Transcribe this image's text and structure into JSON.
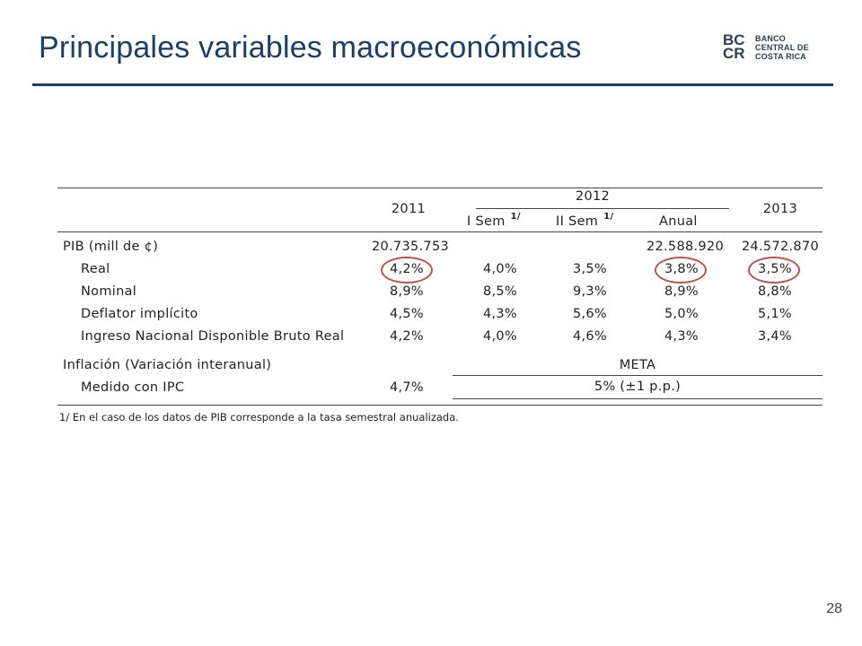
{
  "slide": {
    "title": "Principales variables macroeconómicas",
    "page_number": "28",
    "logo": {
      "line1": "BANCO",
      "line2": "CENTRAL DE",
      "line3": "COSTA RICA",
      "mark_top": "BC",
      "mark_bottom": "CR"
    },
    "accent_color": "#1b3f66",
    "highlight_color": "#c0504d"
  },
  "table": {
    "headers": {
      "y2011": "2011",
      "y2012": "2012",
      "y2013": "2013",
      "sem1": "I Sem",
      "sem2": "II Sem",
      "sem_note": "1/",
      "anual": "Anual",
      "meta": "META"
    },
    "rows": [
      {
        "label": "PIB (mill de ¢)",
        "c2011": "20.735.753",
        "s1": "",
        "s2": "",
        "anual": "22.588.920",
        "c2013": "24.572.870"
      },
      {
        "label": "Real",
        "c2011": "4,2%",
        "s1": "4,0%",
        "s2": "3,5%",
        "anual": "3,8%",
        "c2013": "3,5%"
      },
      {
        "label": "Nominal",
        "c2011": "8,9%",
        "s1": "8,5%",
        "s2": "9,3%",
        "anual": "8,9%",
        "c2013": "8,8%"
      },
      {
        "label": "Deflator implícito",
        "c2011": "4,5%",
        "s1": "4,3%",
        "s2": "5,6%",
        "anual": "5,0%",
        "c2013": "5,1%"
      },
      {
        "label": "Ingreso Nacional Disponible Bruto Real",
        "c2011": "4,2%",
        "s1": "4,0%",
        "s2": "4,6%",
        "anual": "4,3%",
        "c2013": "3,4%"
      }
    ],
    "inflation": {
      "label": "Inflación (Variación interanual)",
      "sub_label": "Medido con IPC",
      "c2011": "4,7%",
      "target": "5% (±1 p.p.)"
    },
    "footnote": "1/ En el caso de los datos de PIB corresponde a la tasa semestral anualizada."
  }
}
